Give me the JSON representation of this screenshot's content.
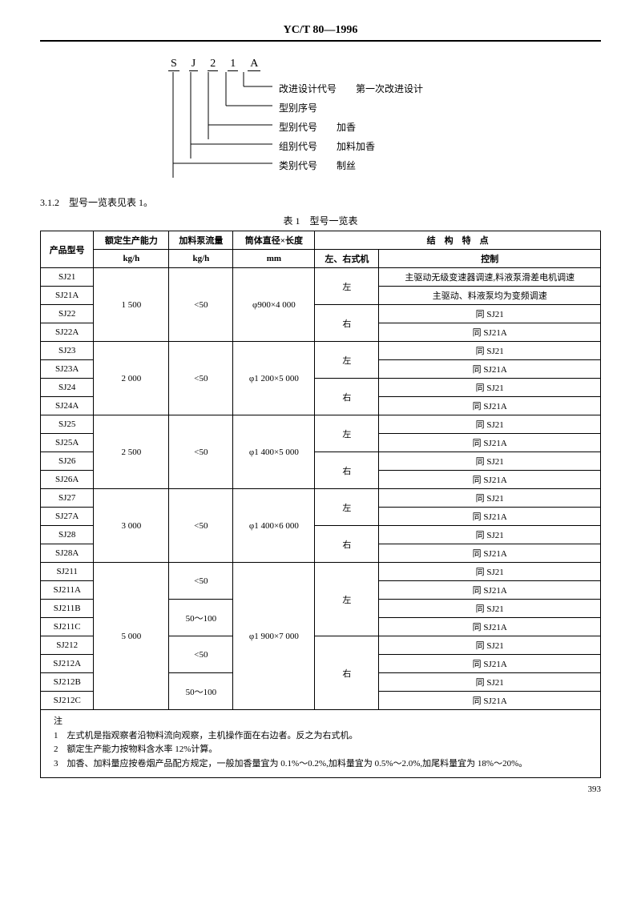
{
  "header": "YC/T 80—1996",
  "diagram": {
    "letters": [
      "S",
      "J",
      "2",
      "1",
      "A"
    ],
    "rows": [
      {
        "label": "改进设计代号",
        "desc": "第一次改进设计"
      },
      {
        "label": "型别序号",
        "desc": ""
      },
      {
        "label": "型别代号",
        "desc": "加香"
      },
      {
        "label": "组别代号",
        "desc": "加料加香"
      },
      {
        "label": "类别代号",
        "desc": "制丝"
      }
    ]
  },
  "section": "3.1.2　型号一览表见表 1。",
  "table_title": "表 1　型号一览表",
  "thead": {
    "c1": "产品型号",
    "c2a": "额定生产能力",
    "c2b": "kg/h",
    "c3a": "加料泵流量",
    "c3b": "kg/h",
    "c4a": "筒体直径×长度",
    "c4b": "mm",
    "c5": "结　构　特　点",
    "c5a": "左、右式机",
    "c5b": "控制"
  },
  "groups": [
    {
      "capacity": "1 500",
      "flow": "<50",
      "dim": "φ900×4 000",
      "rows": [
        {
          "m": "SJ21",
          "side": "左",
          "ctrl": "主驱动无级变速器调速,料液泵滑差电机调速",
          "side_span": 2
        },
        {
          "m": "SJ21A",
          "ctrl": "主驱动、料液泵均为变频调速"
        },
        {
          "m": "SJ22",
          "side": "右",
          "ctrl": "同 SJ21",
          "side_span": 2
        },
        {
          "m": "SJ22A",
          "ctrl": "同 SJ21A"
        }
      ]
    },
    {
      "capacity": "2 000",
      "flow": "<50",
      "dim": "φ1 200×5 000",
      "rows": [
        {
          "m": "SJ23",
          "side": "左",
          "ctrl": "同 SJ21",
          "side_span": 2
        },
        {
          "m": "SJ23A",
          "ctrl": "同 SJ21A"
        },
        {
          "m": "SJ24",
          "side": "右",
          "ctrl": "同 SJ21",
          "side_span": 2
        },
        {
          "m": "SJ24A",
          "ctrl": "同 SJ21A"
        }
      ]
    },
    {
      "capacity": "2 500",
      "flow": "<50",
      "dim": "φ1 400×5 000",
      "rows": [
        {
          "m": "SJ25",
          "side": "左",
          "ctrl": "同 SJ21",
          "side_span": 2
        },
        {
          "m": "SJ25A",
          "ctrl": "同 SJ21A"
        },
        {
          "m": "SJ26",
          "side": "右",
          "ctrl": "同 SJ21",
          "side_span": 2
        },
        {
          "m": "SJ26A",
          "ctrl": "同 SJ21A"
        }
      ]
    },
    {
      "capacity": "3 000",
      "flow": "<50",
      "dim": "φ1 400×6 000",
      "rows": [
        {
          "m": "SJ27",
          "side": "左",
          "ctrl": "同 SJ21",
          "side_span": 2
        },
        {
          "m": "SJ27A",
          "ctrl": "同 SJ21A"
        },
        {
          "m": "SJ28",
          "side": "右",
          "ctrl": "同 SJ21",
          "side_span": 2
        },
        {
          "m": "SJ28A",
          "ctrl": "同 SJ21A"
        }
      ]
    },
    {
      "capacity": "5 000",
      "dim": "φ1 900×7 000",
      "flow_blocks": [
        {
          "flow": "<50",
          "rows": [
            {
              "m": "SJ211"
            },
            {
              "m": "SJ211A"
            }
          ]
        },
        {
          "flow": "50～100",
          "rows": [
            {
              "m": "SJ211B"
            },
            {
              "m": "SJ211C"
            }
          ]
        },
        {
          "flow": "<50",
          "rows": [
            {
              "m": "SJ212"
            },
            {
              "m": "SJ212A"
            }
          ]
        },
        {
          "flow": "50～100",
          "rows": [
            {
              "m": "SJ212B"
            },
            {
              "m": "SJ212C"
            }
          ]
        }
      ],
      "sides": [
        {
          "side": "左",
          "ctrls": [
            "同 SJ21",
            "同 SJ21A",
            "同 SJ21",
            "同 SJ21A"
          ]
        },
        {
          "side": "右",
          "ctrls": [
            "同 SJ21",
            "同 SJ21A",
            "同 SJ21",
            "同 SJ21A"
          ]
        }
      ]
    }
  ],
  "notes_title": "注",
  "notes": [
    "1　左式机是指观察者沿物料流向观察，主机操作面在右边者。反之为右式机。",
    "2　额定生产能力按物料含水率 12%计算。",
    "3　加香、加料量应按卷烟产品配方规定，一般加香量宜为 0.1%～0.2%,加料量宜为 0.5%～2.0%,加尾料量宜为 18%～20%。"
  ],
  "page": "393"
}
